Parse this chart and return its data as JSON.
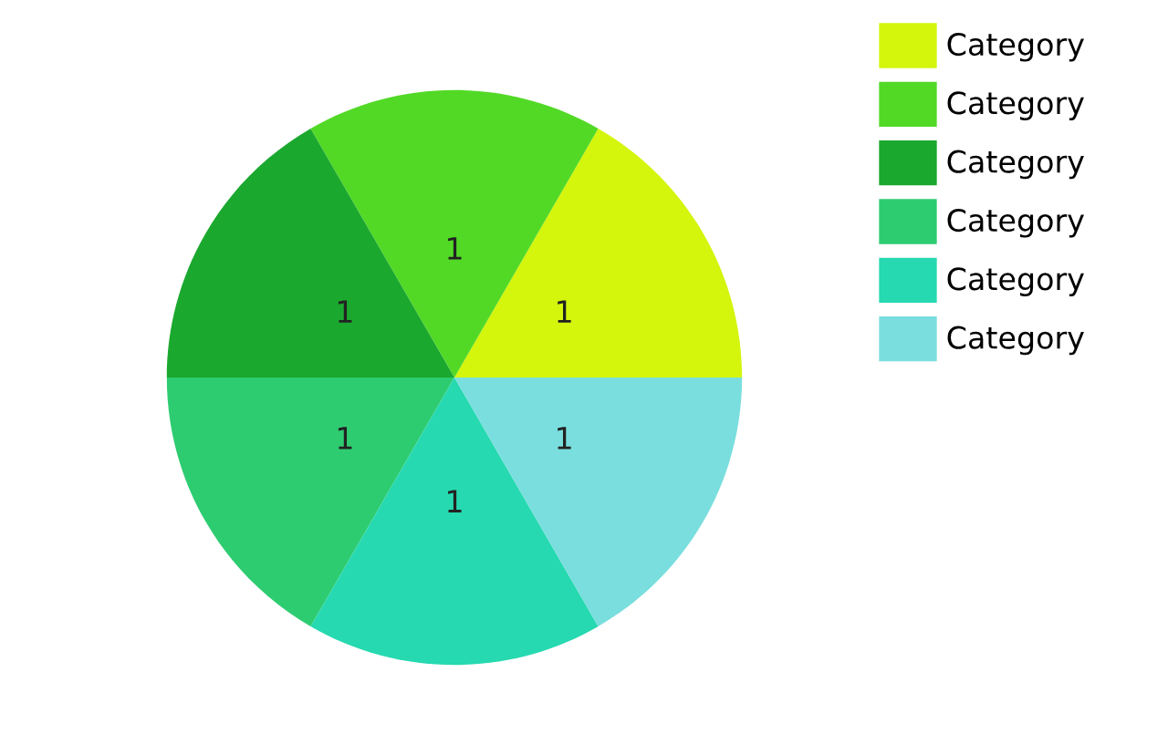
{
  "chart_data": {
    "type": "pie",
    "categories": [
      "Category",
      "Category",
      "Category",
      "Category",
      "Category",
      "Category"
    ],
    "values": [
      1,
      1,
      1,
      1,
      1,
      1
    ],
    "colors": [
      "#d4f50c",
      "#52d926",
      "#1ba82e",
      "#2ecc71",
      "#26d9b0",
      "#7adede"
    ],
    "data_labels": true,
    "legend": "top right"
  }
}
